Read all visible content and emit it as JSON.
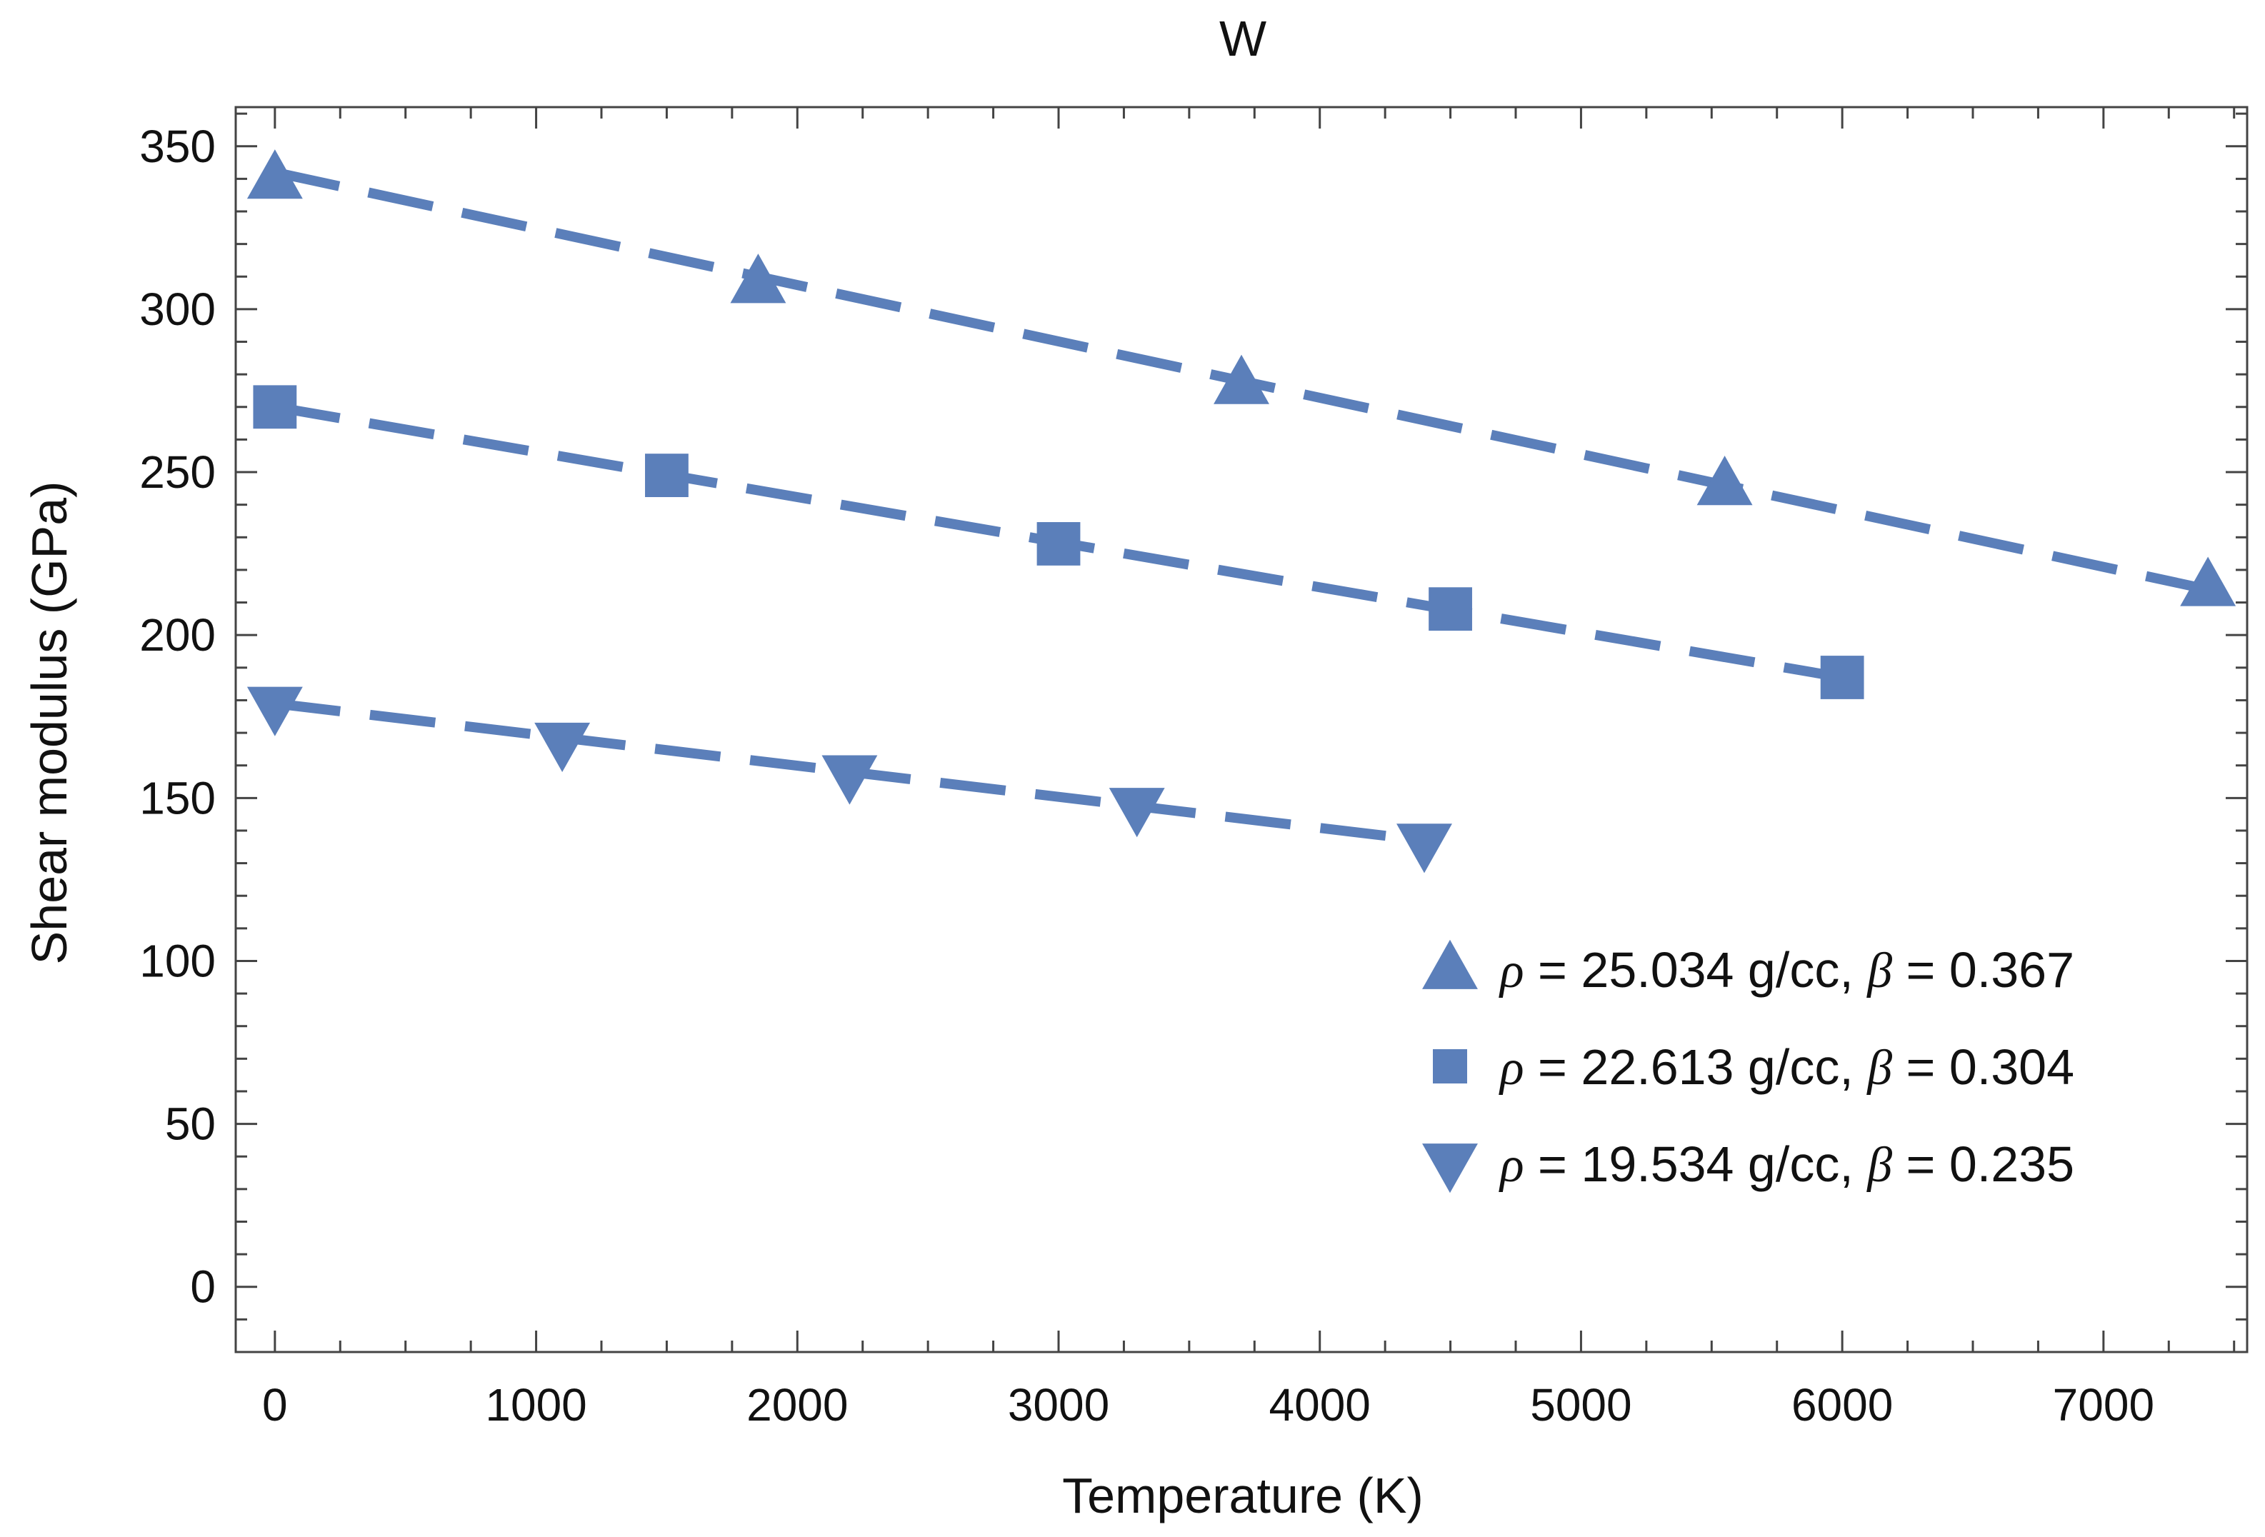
{
  "chart_data": {
    "type": "scatter",
    "title": "W",
    "xlabel": "Temperature (K)",
    "ylabel": "Shear modulus (GPa)",
    "xlim": [
      -150,
      7550
    ],
    "ylim": [
      -20,
      362
    ],
    "xticks": [
      0,
      1000,
      2000,
      3000,
      4000,
      5000,
      6000,
      7000
    ],
    "yticks": [
      0,
      50,
      100,
      150,
      200,
      250,
      300,
      350
    ],
    "xtick_labels": [
      "0",
      "1000",
      "2000",
      "3000",
      "4000",
      "5000",
      "6000",
      "7000"
    ],
    "ytick_labels": [
      "0",
      "50",
      "100",
      "150",
      "200",
      "250",
      "300",
      "350"
    ],
    "grid": false,
    "legend_position": "bottom-right",
    "color": "#5b7fba",
    "series": [
      {
        "name": "ρ = 25.034 g/cc, β = 0.367",
        "legend": {
          "rho_symbol": "ρ",
          "rho_text": " = 25.034 g/cc, ",
          "beta_symbol": "β",
          "beta_text": " = 0.367"
        },
        "marker": "triangle-up",
        "x": [
          0,
          1850,
          3700,
          5550,
          7400
        ],
        "y": [
          340,
          308,
          277,
          246,
          215
        ],
        "fit_line": {
          "style": "dashed",
          "x": [
            0,
            7400
          ],
          "y": [
            342,
            214
          ]
        }
      },
      {
        "name": "ρ = 22.613 g/cc, β = 0.304",
        "legend": {
          "rho_symbol": "ρ",
          "rho_text": " = 22.613 g/cc, ",
          "beta_symbol": "β",
          "beta_text": " = 0.304"
        },
        "marker": "square",
        "x": [
          0,
          1500,
          3000,
          4500,
          6000
        ],
        "y": [
          270,
          249,
          228,
          208,
          187
        ],
        "fit_line": {
          "style": "dashed",
          "x": [
            0,
            6000
          ],
          "y": [
            270,
            187
          ]
        }
      },
      {
        "name": "ρ = 19.534 g/cc, β = 0.235",
        "legend": {
          "rho_symbol": "ρ",
          "rho_text": " = 19.534 g/cc, ",
          "beta_symbol": "β",
          "beta_text": " = 0.235"
        },
        "marker": "triangle-down",
        "x": [
          0,
          1100,
          2200,
          3300,
          4400
        ],
        "y": [
          178,
          167,
          157,
          147,
          136
        ],
        "fit_line": {
          "style": "dashed",
          "x": [
            0,
            4400
          ],
          "y": [
            179,
            137
          ]
        }
      }
    ]
  }
}
